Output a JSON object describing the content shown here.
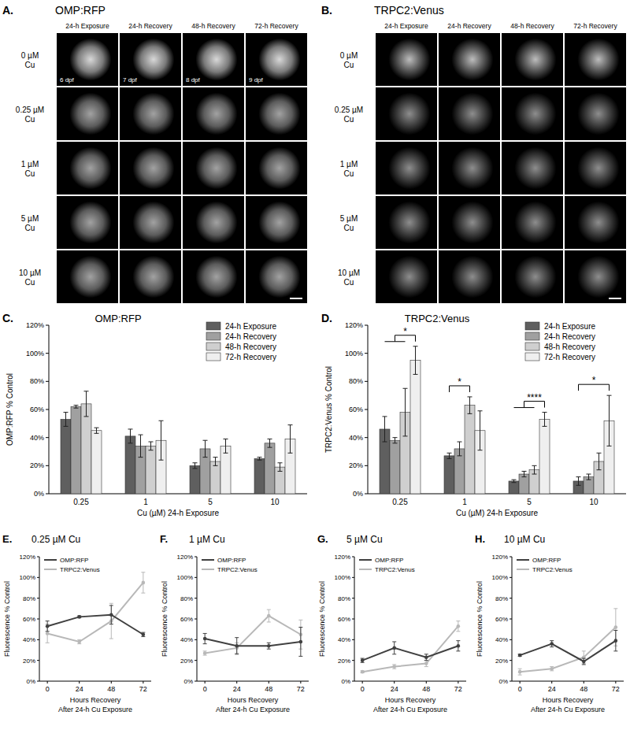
{
  "image_panels": [
    {
      "panel": "A.",
      "title": "OMP:RFP",
      "columns": [
        "24-h Exposure",
        "24-h Recovery",
        "48-h Recovery",
        "72-h Recovery"
      ],
      "rows": [
        [
          "0 µM",
          "Cu"
        ],
        [
          "0.25 µM",
          "Cu"
        ],
        [
          "1 µM",
          "Cu"
        ],
        [
          "5 µM",
          "Cu"
        ],
        [
          "10 µM",
          "Cu"
        ]
      ],
      "dpf": [
        "6 dpf",
        "7 dpf",
        "8 dpf",
        "9 dpf"
      ]
    },
    {
      "panel": "B.",
      "title": "TRPC2:Venus",
      "columns": [
        "24-h Exposure",
        "24-h Recovery",
        "48-h Recovery",
        "72-h Recovery"
      ],
      "rows": [
        [
          "0 µM",
          "Cu"
        ],
        [
          "0.25 µM",
          "Cu"
        ],
        [
          "1 µM",
          "Cu"
        ],
        [
          "5 µM",
          "Cu"
        ],
        [
          "10 µM",
          "Cu"
        ]
      ]
    }
  ],
  "chart_data": [
    {
      "type": "bar",
      "panel": "C.",
      "title": "OMP:RFP",
      "categories": [
        "0.25",
        "1",
        "5",
        "10"
      ],
      "xlabel": "Cu (µM) 24-h Exposure",
      "ylabel": "OMP:RFP % Control",
      "ylim": [
        0,
        120
      ],
      "yticks": [
        {
          "value": 0,
          "label": "0%"
        },
        {
          "value": 20,
          "label": "20%"
        },
        {
          "value": 40,
          "label": "40%"
        },
        {
          "value": 60,
          "label": "60%"
        },
        {
          "value": 80,
          "label": "80%"
        },
        {
          "value": 100,
          "label": "100%"
        },
        {
          "value": 120,
          "label": "120%"
        }
      ],
      "grid": false,
      "legend": "top-right",
      "series": [
        {
          "name": "24-h Exposure",
          "color": "#5f5f5f",
          "values": [
            53,
            41,
            20,
            25
          ],
          "errors": [
            5,
            5,
            2,
            1
          ]
        },
        {
          "name": "24-h Recovery",
          "color": "#a0a0a0",
          "values": [
            62,
            34,
            32,
            36
          ],
          "errors": [
            1,
            8,
            6,
            3
          ]
        },
        {
          "name": "48-h Recovery",
          "color": "#cfcfcf",
          "values": [
            64,
            34,
            23,
            19
          ],
          "errors": [
            9,
            3,
            3,
            3
          ]
        },
        {
          "name": "72-h Recovery",
          "color": "#efefef",
          "values": [
            45,
            38,
            34,
            39
          ],
          "errors": [
            2,
            14,
            5,
            10
          ]
        }
      ]
    },
    {
      "type": "bar",
      "panel": "D.",
      "title": "TRPC2:Venus",
      "categories": [
        "0.25",
        "1",
        "5",
        "10"
      ],
      "xlabel": "Cu (µM) 24-h Exposure",
      "ylabel": "TRPC2:Venus % Control",
      "ylim": [
        0,
        120
      ],
      "yticks": [
        {
          "value": 0,
          "label": "0%"
        },
        {
          "value": 20,
          "label": "20%"
        },
        {
          "value": 40,
          "label": "40%"
        },
        {
          "value": 60,
          "label": "60%"
        },
        {
          "value": 80,
          "label": "80%"
        },
        {
          "value": 100,
          "label": "100%"
        },
        {
          "value": 120,
          "label": "120%"
        }
      ],
      "grid": false,
      "legend": "top-right",
      "series": [
        {
          "name": "24-h Exposure",
          "color": "#5f5f5f",
          "values": [
            46,
            27,
            9,
            9
          ],
          "errors": [
            9,
            2,
            1,
            3
          ]
        },
        {
          "name": "24-h Recovery",
          "color": "#a0a0a0",
          "values": [
            38,
            32,
            14,
            12
          ],
          "errors": [
            2,
            5,
            2,
            2
          ]
        },
        {
          "name": "48-h Recovery",
          "color": "#cfcfcf",
          "values": [
            58,
            63,
            17,
            23
          ],
          "errors": [
            17,
            6,
            3,
            6
          ]
        },
        {
          "name": "72-h Recovery",
          "color": "#efefef",
          "values": [
            95,
            45,
            53,
            52
          ],
          "errors": [
            10,
            14,
            5,
            18
          ]
        }
      ],
      "annotations": [
        {
          "text": "*",
          "category": 0,
          "left": [
            0,
            2
          ],
          "right": 3
        },
        {
          "text": "*",
          "category": 1,
          "left": [
            0,
            0
          ],
          "right": 2
        },
        {
          "text": "****",
          "category": 2,
          "left": [
            0,
            2
          ],
          "right": 3
        },
        {
          "text": "*",
          "category": 3,
          "left": [
            0,
            0
          ],
          "right": 3
        }
      ]
    },
    {
      "type": "line",
      "panel": "E.",
      "title": "0.25 µM Cu",
      "x": [
        0,
        24,
        48,
        72
      ],
      "xlim": [
        -6,
        78
      ],
      "xticks": [
        0,
        24,
        48,
        72
      ],
      "xlabel": [
        "Hours Recovery",
        "After 24-h Cu Exposure"
      ],
      "ylabel": "Fluorescence % Control",
      "ylim": [
        0,
        120
      ],
      "yticks": [
        {
          "value": 0,
          "label": "0%"
        },
        {
          "value": 20,
          "label": "20%"
        },
        {
          "value": 40,
          "label": "40%"
        },
        {
          "value": 60,
          "label": "60%"
        },
        {
          "value": 80,
          "label": "80%"
        },
        {
          "value": 100,
          "label": "100%"
        },
        {
          "value": 120,
          "label": "120%"
        }
      ],
      "grid": false,
      "legend": "top-left",
      "marker": "circle",
      "series": [
        {
          "name": "OMP:RFP",
          "color": "#404040",
          "values": [
            53,
            62,
            64,
            45
          ],
          "errors": [
            5,
            1,
            9,
            2
          ]
        },
        {
          "name": "TRPC2:Venus",
          "color": "#b8b8b8",
          "values": [
            46,
            38,
            58,
            95
          ],
          "errors": [
            9,
            2,
            17,
            10
          ]
        }
      ]
    },
    {
      "type": "line",
      "panel": "F.",
      "title": "1 µM Cu",
      "x": [
        0,
        24,
        48,
        72
      ],
      "xlim": [
        -6,
        78
      ],
      "xticks": [
        0,
        24,
        48,
        72
      ],
      "xlabel": [
        "Hours Recovery",
        "After 24-h Cu Exposure"
      ],
      "ylabel": "Fluorescence % Control",
      "ylim": [
        0,
        120
      ],
      "yticks": [
        {
          "value": 0,
          "label": "0%"
        },
        {
          "value": 20,
          "label": "20%"
        },
        {
          "value": 40,
          "label": "40%"
        },
        {
          "value": 60,
          "label": "60%"
        },
        {
          "value": 80,
          "label": "80%"
        },
        {
          "value": 100,
          "label": "100%"
        },
        {
          "value": 120,
          "label": "120%"
        }
      ],
      "grid": false,
      "legend": "top-left",
      "marker": "circle",
      "series": [
        {
          "name": "OMP:RFP",
          "color": "#404040",
          "values": [
            41,
            34,
            34,
            38
          ],
          "errors": [
            5,
            8,
            3,
            14
          ]
        },
        {
          "name": "TRPC2:Venus",
          "color": "#b8b8b8",
          "values": [
            27,
            32,
            63,
            45
          ],
          "errors": [
            2,
            5,
            6,
            14
          ]
        }
      ]
    },
    {
      "type": "line",
      "panel": "G.",
      "title": "5 µM Cu",
      "x": [
        0,
        24,
        48,
        72
      ],
      "xlim": [
        -6,
        78
      ],
      "xticks": [
        0,
        24,
        48,
        72
      ],
      "xlabel": [
        "Hours Recovery",
        "After 24-h Cu Exposure"
      ],
      "ylabel": "Fluorescence % Control",
      "ylim": [
        0,
        120
      ],
      "yticks": [
        {
          "value": 0,
          "label": "0%"
        },
        {
          "value": 20,
          "label": "20%"
        },
        {
          "value": 40,
          "label": "40%"
        },
        {
          "value": 60,
          "label": "60%"
        },
        {
          "value": 80,
          "label": "80%"
        },
        {
          "value": 100,
          "label": "100%"
        },
        {
          "value": 120,
          "label": "120%"
        }
      ],
      "grid": false,
      "legend": "top-left",
      "marker": "circle",
      "series": [
        {
          "name": "OMP:RFP",
          "color": "#404040",
          "values": [
            20,
            32,
            23,
            34
          ],
          "errors": [
            2,
            6,
            3,
            5
          ]
        },
        {
          "name": "TRPC2:Venus",
          "color": "#b8b8b8",
          "values": [
            9,
            14,
            17,
            53
          ],
          "errors": [
            1,
            2,
            3,
            5
          ]
        }
      ]
    },
    {
      "type": "line",
      "panel": "H.",
      "title": "10 µM Cu",
      "x": [
        0,
        24,
        48,
        72
      ],
      "xlim": [
        -6,
        78
      ],
      "xticks": [
        0,
        24,
        48,
        72
      ],
      "xlabel": [
        "Hours Recovery",
        "After 24-h Cu Exposure"
      ],
      "ylabel": "Fluorescence % Control",
      "ylim": [
        0,
        120
      ],
      "yticks": [
        {
          "value": 0,
          "label": "0%"
        },
        {
          "value": 20,
          "label": "20%"
        },
        {
          "value": 40,
          "label": "40%"
        },
        {
          "value": 60,
          "label": "60%"
        },
        {
          "value": 80,
          "label": "80%"
        },
        {
          "value": 100,
          "label": "100%"
        },
        {
          "value": 120,
          "label": "120%"
        }
      ],
      "grid": false,
      "legend": "top-left",
      "marker": "circle",
      "series": [
        {
          "name": "OMP:RFP",
          "color": "#404040",
          "values": [
            25,
            36,
            19,
            39
          ],
          "errors": [
            1,
            3,
            3,
            10
          ]
        },
        {
          "name": "TRPC2:Venus",
          "color": "#b8b8b8",
          "values": [
            9,
            12,
            23,
            52
          ],
          "errors": [
            3,
            2,
            6,
            18
          ]
        }
      ]
    }
  ]
}
